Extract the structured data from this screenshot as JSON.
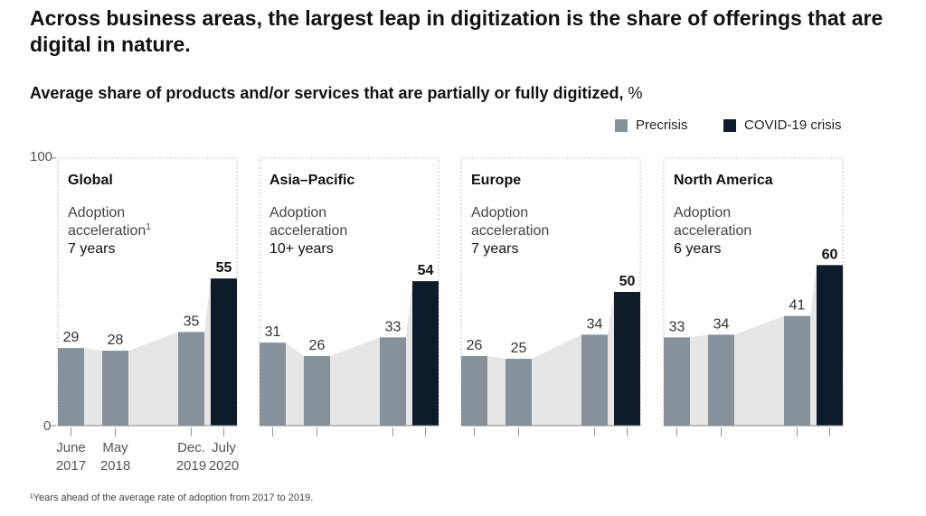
{
  "title": "Across business areas, the largest leap in digitization is the share of offerings that are digital in nature.",
  "subtitle": "Average share of products and/or services that are partially or fully digitized,",
  "unit": "%",
  "legend": [
    {
      "label": "Precrisis",
      "color": "#87919a"
    },
    {
      "label": "COVID-19 crisis",
      "color": "#0d1b2a"
    }
  ],
  "y_axis": {
    "max_label": "100",
    "min_label": "0"
  },
  "x_tick_labels": [
    {
      "line1": "June",
      "line2": "2017"
    },
    {
      "line1": "May",
      "line2": "2018"
    },
    {
      "line1": "Dec.",
      "line2": "2019"
    },
    {
      "line1": "July",
      "line2": "2020"
    }
  ],
  "footnote": "¹Years ahead of the average rate of adoption from 2017 to 2019.",
  "colors": {
    "precrisis": "#87919a",
    "covid": "#0d1b2a",
    "area": "#e6e6e6",
    "border": "#c2c2c2"
  },
  "chart_data": [
    {
      "type": "bar",
      "title": "Global",
      "annotation_label": "Adoption",
      "annotation_label2": "acceleration",
      "annotation_sup": "1",
      "annotation_value": "7 years",
      "categories": [
        "June 2017",
        "May 2018",
        "Dec. 2019",
        "July 2020"
      ],
      "values": [
        29,
        28,
        35,
        55
      ],
      "ylim": [
        0,
        100
      ]
    },
    {
      "type": "bar",
      "title": "Asia–Pacific",
      "annotation_label": "Adoption",
      "annotation_label2": "acceleration",
      "annotation_sup": "",
      "annotation_value": "10+ years",
      "categories": [
        "June 2017",
        "May 2018",
        "Dec. 2019",
        "July 2020"
      ],
      "values": [
        31,
        26,
        33,
        54
      ],
      "ylim": [
        0,
        100
      ]
    },
    {
      "type": "bar",
      "title": "Europe",
      "annotation_label": "Adoption",
      "annotation_label2": "acceleration",
      "annotation_sup": "",
      "annotation_value": "7 years",
      "categories": [
        "June 2017",
        "May 2018",
        "Dec. 2019",
        "July 2020"
      ],
      "values": [
        26,
        25,
        34,
        50
      ],
      "ylim": [
        0,
        100
      ]
    },
    {
      "type": "bar",
      "title": "North America",
      "annotation_label": "Adoption",
      "annotation_label2": "acceleration",
      "annotation_sup": "",
      "annotation_value": "6 years",
      "categories": [
        "June 2017",
        "May 2018",
        "Dec. 2019",
        "July 2020"
      ],
      "values": [
        33,
        34,
        41,
        60
      ],
      "ylim": [
        0,
        100
      ]
    }
  ]
}
